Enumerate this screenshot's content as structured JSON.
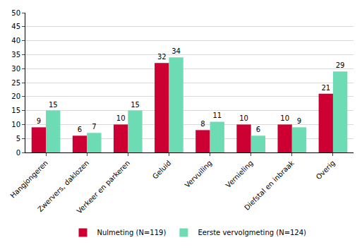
{
  "chart_data": {
    "type": "bar",
    "categories": [
      "Hangjongeren",
      "Zwervers, daklozen",
      "Verkeer en parkeren",
      "Geluid",
      "Vervuiling",
      "Vernieling",
      "Diefstal en inbraak",
      "Overig"
    ],
    "series": [
      {
        "name": "Nulmeting (N=119)",
        "color": "#cc0033",
        "values": [
          9,
          6,
          10,
          32,
          8,
          10,
          10,
          21
        ]
      },
      {
        "name": "Eerste vervolgmeting (N=124)",
        "color": "#6ddbb3",
        "values": [
          15,
          7,
          15,
          34,
          11,
          6,
          9,
          29
        ]
      }
    ],
    "ylim": [
      0,
      50
    ],
    "yticks": [
      0,
      5,
      10,
      15,
      20,
      25,
      30,
      35,
      40,
      45,
      50
    ],
    "grid": true,
    "data_labels": true,
    "legend": "bottom"
  }
}
